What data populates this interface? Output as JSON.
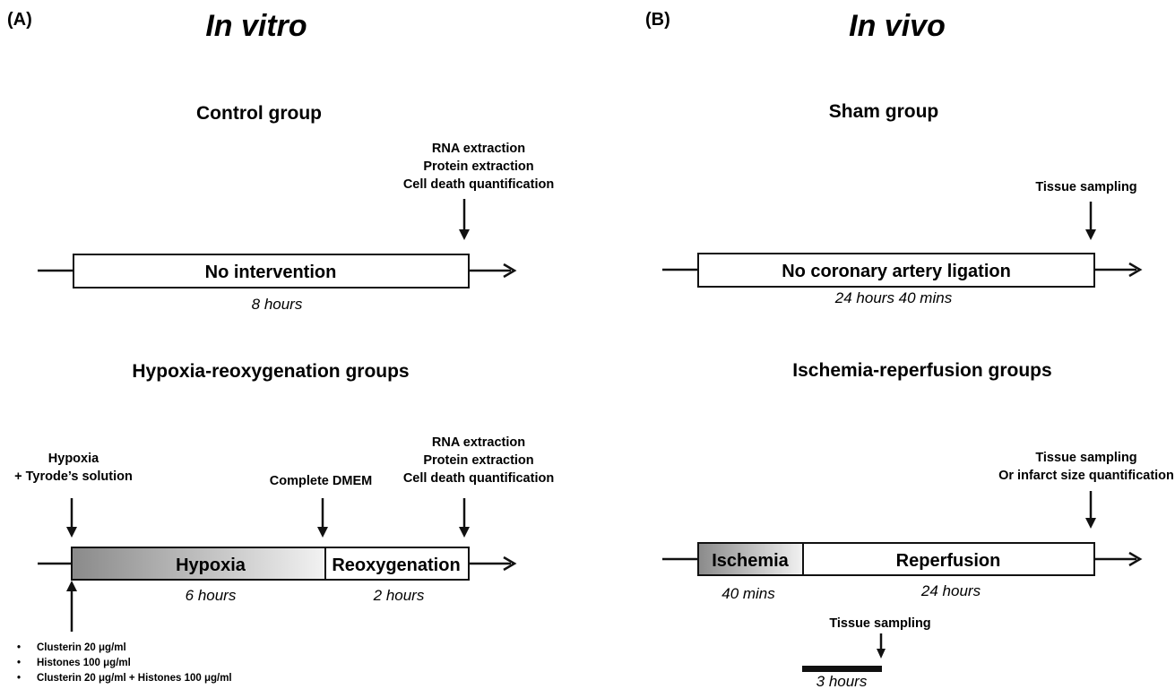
{
  "panelA": {
    "label": "(A)",
    "title": "In vitro",
    "control": {
      "title": "Control group",
      "endpoints": [
        "RNA extraction",
        "Protein extraction",
        "Cell death quantification"
      ],
      "box_label": "No intervention",
      "duration": "8 hours"
    },
    "hr": {
      "title": "Hypoxia-reoxygenation groups",
      "start_annotation": [
        "Hypoxia",
        "+ Tyrode’s solution"
      ],
      "mid_annotation": "Complete DMEM",
      "endpoints": [
        "RNA extraction",
        "Protein extraction",
        "Cell death quantification"
      ],
      "phase1_label": "Hypoxia",
      "phase2_label": "Reoxygenation",
      "phase1_duration": "6 hours",
      "phase2_duration": "2 hours",
      "treatments": [
        "Clusterin 20 μg/ml",
        "Histones 100 μg/ml",
        "Clusterin 20 μg/ml + Histones 100 μg/ml"
      ],
      "bullet_char": "•"
    }
  },
  "panelB": {
    "label": "(B)",
    "title": "In vivo",
    "sham": {
      "title": "Sham group",
      "endpoint": "Tissue sampling",
      "box_label": "No coronary artery ligation",
      "duration": "24 hours 40 mins"
    },
    "ir": {
      "title": "Ischemia-reperfusion groups",
      "endpoints": [
        "Tissue sampling",
        "Or infarct size quantification"
      ],
      "phase1_label": "Ischemia",
      "phase2_label": "Reperfusion",
      "phase1_duration": "40 mins",
      "phase2_duration": "24 hours",
      "sub_endpoint": "Tissue sampling",
      "sub_duration": "3 hours"
    }
  },
  "colors": {
    "ink": "#111111",
    "gradient_dark": "#8a8a8a",
    "gradient_light": "#f2f2f2"
  }
}
